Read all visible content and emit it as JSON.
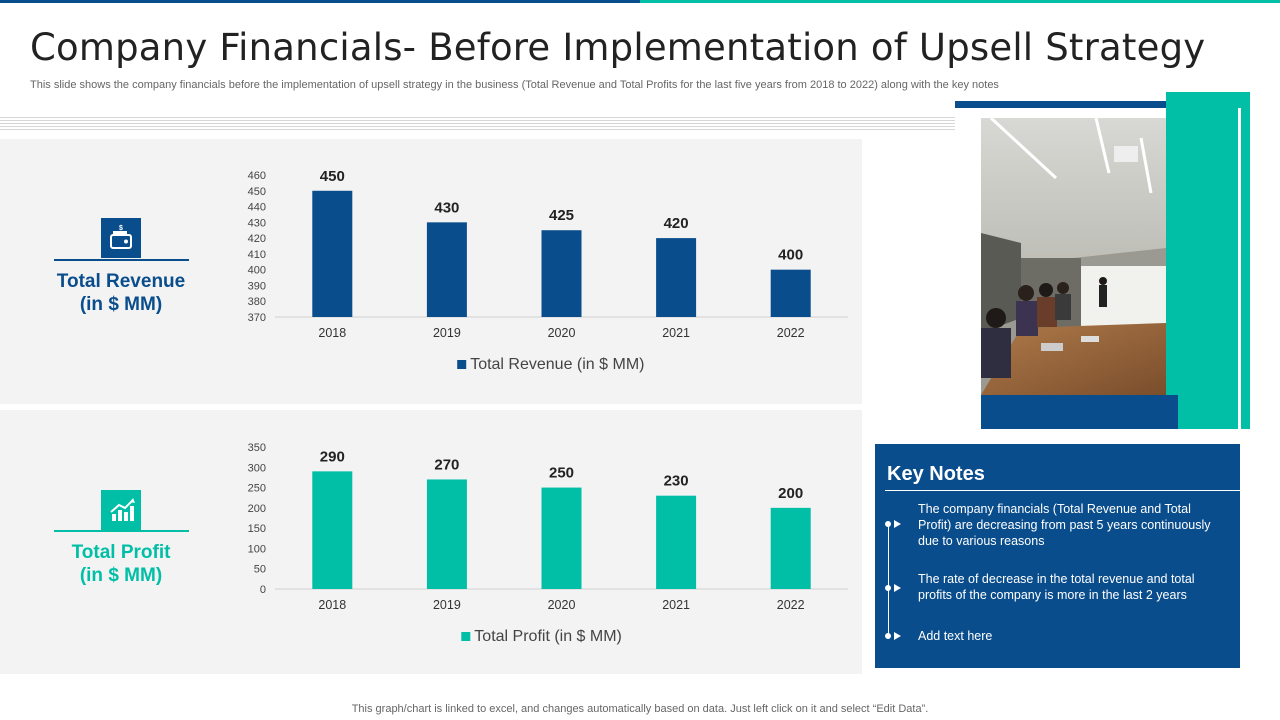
{
  "header": {
    "title": "Company Financials- Before Implementation of Upsell Strategy",
    "subtitle": "This slide shows the company financials before the implementation of upsell strategy in the business (Total Revenue and Total Profits for the last five years from 2018 to 2022) along with the key notes"
  },
  "kpis": {
    "revenue_label_line1": "Total Revenue",
    "revenue_label_line2": "(in $ MM)",
    "profit_label_line1": "Total Profit",
    "profit_label_line2": "(in $ MM)"
  },
  "colors": {
    "navy": "#0a4d8c",
    "teal": "#00bfa6"
  },
  "chart_data": [
    {
      "type": "bar",
      "categories": [
        "2018",
        "2019",
        "2020",
        "2021",
        "2022"
      ],
      "series": [
        {
          "name": "Total Revenue (in $ MM)",
          "values": [
            450,
            430,
            425,
            420,
            400
          ]
        }
      ],
      "ylim": [
        370,
        460
      ],
      "yticks": [
        370,
        380,
        390,
        400,
        410,
        420,
        430,
        440,
        450,
        460
      ],
      "legend": "bottom",
      "color": "#0a4d8c"
    },
    {
      "type": "bar",
      "categories": [
        "2018",
        "2019",
        "2020",
        "2021",
        "2022"
      ],
      "series": [
        {
          "name": "Total Profit (in $ MM)",
          "values": [
            290,
            270,
            250,
            230,
            200
          ]
        }
      ],
      "ylim": [
        0,
        350
      ],
      "yticks": [
        0,
        50,
        100,
        150,
        200,
        250,
        300,
        350
      ],
      "legend": "bottom",
      "color": "#00bfa6"
    }
  ],
  "notes": {
    "title": "Key Notes",
    "items": [
      "The company financials (Total Revenue and Total Profit) are decreasing from past 5 years continuously due to various reasons",
      "The rate of decrease in the total revenue and total profits of the company is more in the last 2 years",
      "Add text here"
    ]
  },
  "footer": {
    "text": "This graph/chart is linked to excel, and changes automatically based on data. Just left click on it and select “Edit Data”."
  }
}
